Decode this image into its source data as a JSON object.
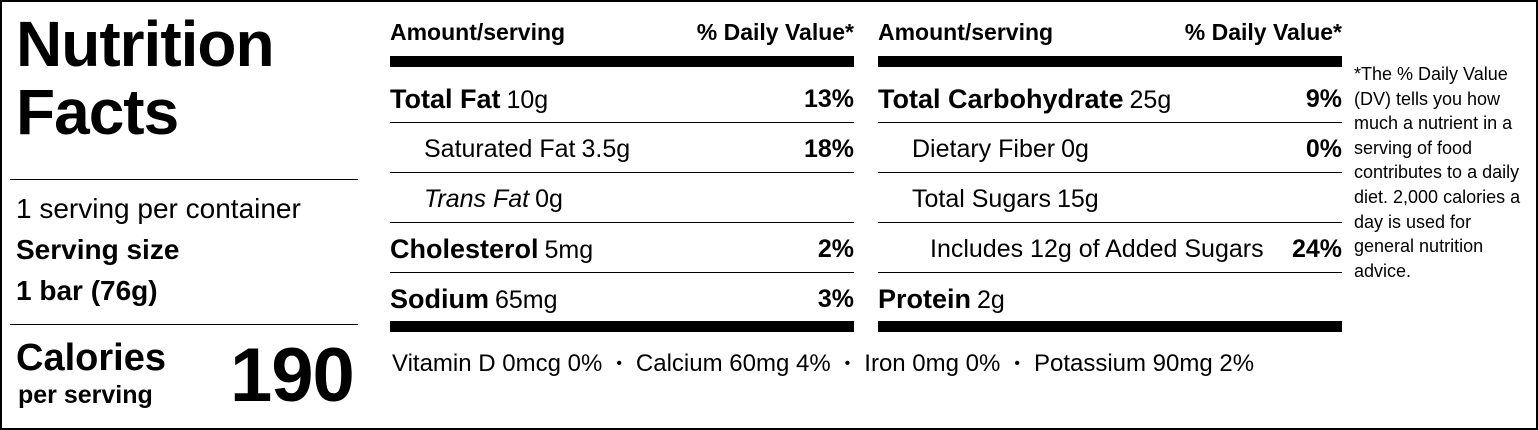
{
  "title_lines": [
    "Nutrition",
    "Facts"
  ],
  "servings": "1 serving per container",
  "serving_size_label": "Serving size",
  "serving_size": "1 bar (76g)",
  "calories_label": "Calories",
  "calories_sublabel": "per serving",
  "calories": 190,
  "columns": [
    {
      "header": {
        "amount": "Amount/serving",
        "dv": "% Daily Value*"
      },
      "rows": [
        {
          "name": "Total Fat",
          "amount": "10g",
          "dv": "13%",
          "bold": true,
          "indent": 0
        },
        {
          "name": "Saturated Fat",
          "amount": "3.5g",
          "dv": "18%",
          "indent": 1
        },
        {
          "name": "Trans Fat",
          "amount": "0g",
          "italic": true,
          "indent": 1
        },
        {
          "name": "Cholesterol",
          "amount": "5mg",
          "dv": "2%",
          "bold": true,
          "indent": 0
        },
        {
          "name": "Sodium",
          "amount": "65mg",
          "dv": "3%",
          "bold": true,
          "indent": 0
        }
      ]
    },
    {
      "header": {
        "amount": "Amount/serving",
        "dv": "% Daily Value*"
      },
      "rows": [
        {
          "name": "Total Carbohydrate",
          "amount": "25g",
          "dv": "9%",
          "bold": true,
          "indent": 0
        },
        {
          "name": "Dietary Fiber",
          "amount": "0g",
          "dv": "0%",
          "indent": 1
        },
        {
          "name": "Total Sugars",
          "amount": "15g",
          "indent": 1
        },
        {
          "name": "Includes 12g of Added Sugars",
          "dv": "24%",
          "indent": 2
        },
        {
          "name": "Protein",
          "amount": "2g",
          "bold": true,
          "indent": 0
        }
      ]
    }
  ],
  "vitamins": [
    "Vitamin D 0mcg 0%",
    "Calcium 60mg 4%",
    "Iron 0mg 0%",
    "Potassium 90mg 2%"
  ],
  "footnote": "*The % Daily Value (DV) tells you how much a nutrient in a serving of food contributes to a daily diet. 2,000 calories a day is used for general nutrition advice."
}
